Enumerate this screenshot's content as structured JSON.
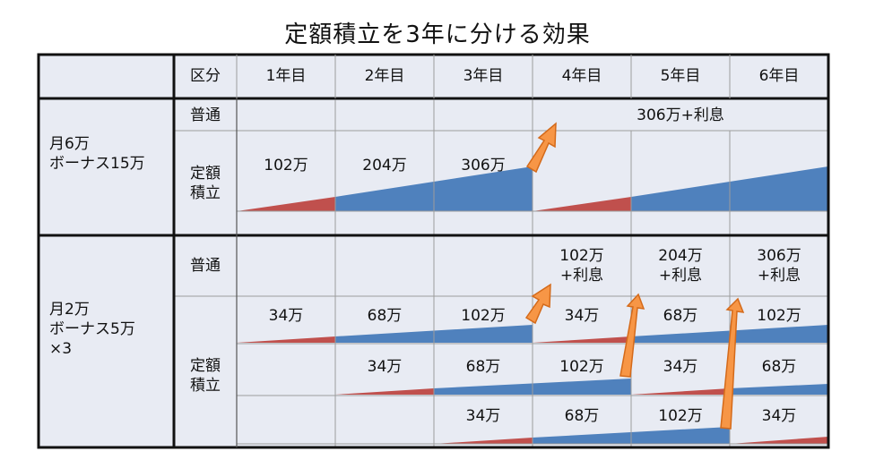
{
  "title": "定額積立を3年に分ける効果",
  "header": {
    "kubun": "区分",
    "years": [
      "1年目",
      "2年目",
      "3年目",
      "4年目",
      "5年目",
      "6年目"
    ]
  },
  "plan1": {
    "label_line1": "月6万",
    "label_line2": "ボーナス15万",
    "futsu_label": "普通",
    "teigaku_label_line1": "定額",
    "teigaku_label_line2": "積立",
    "futsu_value": "306万+利息",
    "amounts": [
      "102万",
      "204万",
      "306万"
    ]
  },
  "plan2": {
    "label_line1": "月2万",
    "label_line2": "ボーナス5万",
    "label_line3": "×3",
    "futsu_label": "普通",
    "teigaku_label_line1": "定額",
    "teigaku_label_line2": "積立",
    "futsu_values": [
      {
        "line1": "102万",
        "line2": "+利息"
      },
      {
        "line1": "204万",
        "line2": "+利息"
      },
      {
        "line1": "306万",
        "line2": "+利息"
      }
    ],
    "row1": [
      "34万",
      "68万",
      "102万",
      "34万",
      "68万",
      "102万"
    ],
    "row2": [
      "34万",
      "68万",
      "102万",
      "34万",
      "68万"
    ],
    "row3": [
      "34万",
      "68万",
      "102万",
      "34万"
    ]
  },
  "colors": {
    "cell_bg": "#e8ebf3",
    "grid": "#9c9c9c",
    "border": "#111111",
    "red": "#c0504d",
    "blue": "#4f81bd",
    "arrow_fill": "#f79646",
    "arrow_stroke": "#d46a1a"
  }
}
